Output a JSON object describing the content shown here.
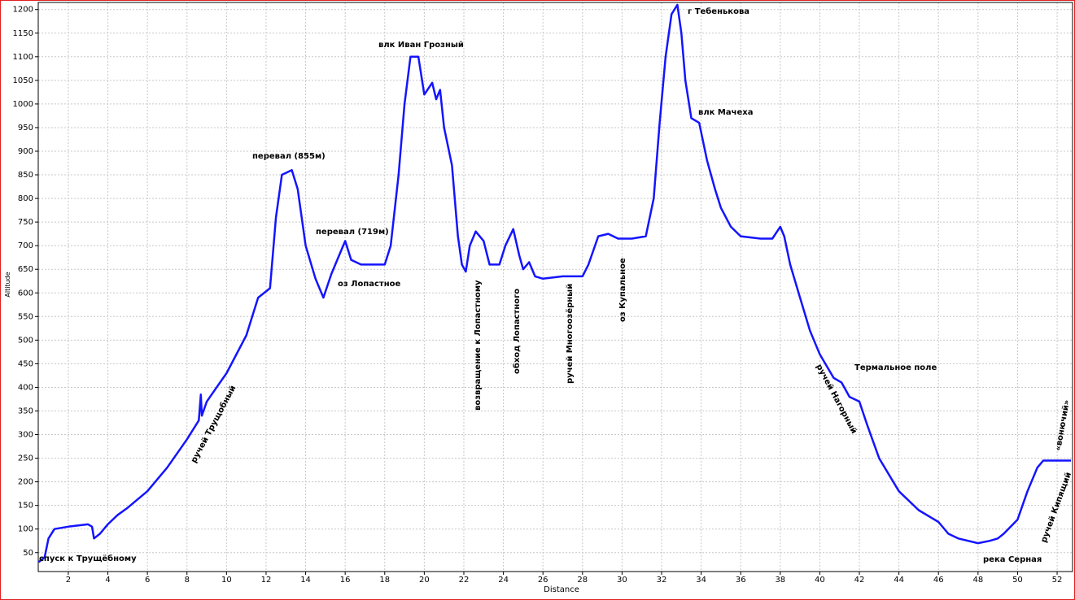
{
  "chart_data": {
    "type": "line",
    "x_label": "Distance",
    "y_label": "Altitude",
    "xlim": [
      0.48,
      52.78
    ],
    "ylim": [
      10,
      1215
    ],
    "xticks": [
      2,
      4,
      6,
      8,
      10,
      12,
      14,
      16,
      18,
      20,
      22,
      24,
      26,
      28,
      30,
      32,
      34,
      36,
      38,
      40,
      42,
      44,
      46,
      48,
      50,
      52
    ],
    "yticks": [
      50,
      100,
      150,
      200,
      250,
      300,
      350,
      400,
      450,
      500,
      550,
      600,
      650,
      700,
      750,
      800,
      850,
      900,
      950,
      1000,
      1050,
      1100,
      1150,
      1200
    ],
    "grid": true,
    "series": [
      {
        "name": "Altitude",
        "color": "#1414ff",
        "x": [
          0.5,
          0.8,
          1.0,
          1.3,
          2,
          3,
          3.2,
          3.3,
          3.6,
          4,
          4.5,
          5,
          6,
          7,
          8,
          8.6,
          8.7,
          8.75,
          9,
          9.5,
          10,
          11,
          11.6,
          12.2,
          12.5,
          12.8,
          13.3,
          13.6,
          14,
          14.5,
          14.9,
          15.3,
          15.8,
          16,
          16.3,
          16.8,
          17.5,
          18,
          18.3,
          18.7,
          19,
          19.3,
          19.7,
          20,
          20.4,
          20.6,
          20.8,
          21,
          21.4,
          21.7,
          21.9,
          22.1,
          22.3,
          22.6,
          23,
          23.3,
          23.8,
          24.1,
          24.5,
          24.8,
          25,
          25.3,
          25.6,
          26,
          27,
          28,
          28.3,
          28.8,
          29.3,
          29.8,
          30.5,
          31.2,
          31.6,
          31.9,
          32.2,
          32.5,
          32.8,
          33,
          33.2,
          33.5,
          33.9,
          34.3,
          34.7,
          35,
          35.5,
          36,
          37,
          37.6,
          38,
          38.2,
          38.5,
          39,
          39.5,
          40,
          40.7,
          41.1,
          41.5,
          42,
          42.4,
          43,
          44,
          45,
          46,
          46.5,
          47,
          48,
          48.6,
          49,
          49.3,
          50,
          50.5,
          51,
          51.3,
          52,
          52.7
        ],
        "values": [
          30,
          40,
          80,
          100,
          105,
          110,
          105,
          80,
          90,
          110,
          130,
          145,
          180,
          230,
          290,
          330,
          385,
          340,
          370,
          400,
          430,
          510,
          590,
          610,
          760,
          850,
          860,
          820,
          700,
          630,
          590,
          640,
          690,
          710,
          670,
          660,
          660,
          660,
          700,
          850,
          1000,
          1100,
          1100,
          1020,
          1045,
          1010,
          1030,
          950,
          870,
          720,
          660,
          645,
          700,
          730,
          710,
          660,
          660,
          700,
          735,
          680,
          650,
          665,
          635,
          630,
          635,
          635,
          660,
          720,
          725,
          715,
          715,
          720,
          800,
          960,
          1100,
          1190,
          1210,
          1150,
          1050,
          970,
          960,
          880,
          820,
          780,
          740,
          720,
          715,
          715,
          740,
          720,
          660,
          590,
          520,
          470,
          420,
          410,
          380,
          370,
          320,
          250,
          180,
          140,
          115,
          90,
          80,
          70,
          75,
          80,
          90,
          120,
          180,
          230,
          245,
          245,
          245
        ]
      }
    ],
    "annotations": [
      "спуск к Трущёбному",
      "ручей Трущобный",
      "перевал (855м)",
      "перевал (719м)",
      "оз Лопастное",
      "влк Иван Грозный",
      "возвращение к Лопастному",
      "обход Лопастного",
      "ручей Многоозёрный",
      "оз Купальное",
      "г Тебенькова",
      "влк Мачеха",
      "Термальное поле",
      "ручей Нагорный",
      "река Серная",
      "ручей Кипящий",
      "«вонючий»"
    ]
  }
}
